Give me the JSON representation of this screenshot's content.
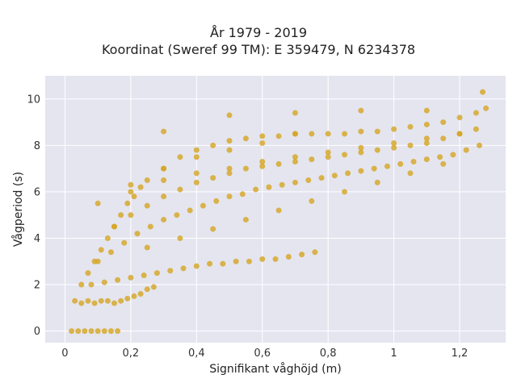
{
  "chart_data": {
    "type": "scatter",
    "title_line1": "År 1979 - 2019",
    "title_line2": "Koordinat (Sweref 99 TM): E 359479, N 6234378",
    "xlabel": "Signifikant våghöjd (m)",
    "ylabel": "Vågperiod (s)",
    "xlim": [
      -0.06,
      1.34
    ],
    "ylim": [
      -0.5,
      11.0
    ],
    "x_ticks": [
      {
        "value": 0,
        "label": "0"
      },
      {
        "value": 0.2,
        "label": "0,2"
      },
      {
        "value": 0.4,
        "label": "0,4"
      },
      {
        "value": 0.6,
        "label": "0,6"
      },
      {
        "value": 0.8,
        "label": "0,8"
      },
      {
        "value": 1.0,
        "label": "1"
      },
      {
        "value": 1.2,
        "label": "1,2"
      }
    ],
    "y_ticks": [
      {
        "value": 0,
        "label": "0"
      },
      {
        "value": 2,
        "label": "2"
      },
      {
        "value": 4,
        "label": "4"
      },
      {
        "value": 6,
        "label": "6"
      },
      {
        "value": 8,
        "label": "8"
      },
      {
        "value": 10,
        "label": "10"
      }
    ],
    "grid": true,
    "legend": "none",
    "marker_color": "#D4A520",
    "background_color": "#E5E5F0",
    "series": [
      {
        "x": [
          0.02,
          0.04,
          0.06,
          0.08,
          0.1,
          0.12,
          0.14,
          0.16,
          0.03,
          0.05,
          0.07,
          0.09,
          0.11,
          0.13,
          0.15,
          0.17,
          0.19,
          0.21,
          0.23,
          0.25,
          0.27,
          0.08,
          0.12,
          0.16,
          0.2,
          0.24,
          0.28,
          0.32,
          0.36,
          0.4,
          0.44,
          0.48,
          0.52,
          0.56,
          0.6,
          0.64,
          0.68,
          0.72,
          0.76,
          0.1,
          0.14,
          0.18,
          0.22,
          0.26,
          0.3,
          0.34,
          0.38,
          0.42,
          0.46,
          0.5,
          0.54,
          0.58,
          0.62,
          0.66,
          0.7,
          0.74,
          0.78,
          0.82,
          0.86,
          0.9,
          0.94,
          0.98,
          1.02,
          1.06,
          1.1,
          1.14,
          1.18,
          1.22,
          1.26,
          0.15,
          0.2,
          0.25,
          0.3,
          0.35,
          0.4,
          0.45,
          0.5,
          0.55,
          0.6,
          0.65,
          0.7,
          0.75,
          0.8,
          0.85,
          0.9,
          0.95,
          1.0,
          1.05,
          1.1,
          1.15,
          1.2,
          1.25,
          0.05,
          0.07,
          0.09,
          0.11,
          0.13,
          0.15,
          0.17,
          0.19,
          0.21,
          0.23,
          0.25,
          0.3,
          0.35,
          0.4,
          0.45,
          0.5,
          0.55,
          0.6,
          0.65,
          0.7,
          0.75,
          0.8,
          0.85,
          0.9,
          0.95,
          1.0,
          1.05,
          1.1,
          1.15,
          1.2,
          1.25,
          1.28,
          0.2,
          0.3,
          0.4,
          0.5,
          0.6,
          0.7,
          0.8,
          0.9,
          1.0,
          1.1,
          1.2,
          0.25,
          0.35,
          0.45,
          0.55,
          0.65,
          0.75,
          0.85,
          0.95,
          1.05,
          1.15,
          0.3,
          0.5,
          0.7,
          0.9,
          1.1,
          1.27,
          0.1,
          0.2,
          0.3,
          0.4,
          0.5,
          0.6,
          0.7
        ],
        "y": [
          0,
          0,
          0,
          0,
          0,
          0,
          0,
          0,
          1.3,
          1.2,
          1.3,
          1.2,
          1.3,
          1.3,
          1.2,
          1.3,
          1.4,
          1.5,
          1.6,
          1.8,
          1.9,
          2.0,
          2.1,
          2.2,
          2.3,
          2.4,
          2.5,
          2.6,
          2.7,
          2.8,
          2.9,
          2.9,
          3.0,
          3.0,
          3.1,
          3.1,
          3.2,
          3.3,
          3.4,
          3.0,
          3.4,
          3.8,
          4.2,
          4.5,
          4.8,
          5.0,
          5.2,
          5.4,
          5.6,
          5.8,
          5.9,
          6.1,
          6.2,
          6.3,
          6.4,
          6.5,
          6.6,
          6.7,
          6.8,
          6.9,
          7.0,
          7.1,
          7.2,
          7.3,
          7.4,
          7.5,
          7.6,
          7.8,
          8.0,
          4.5,
          5.0,
          5.4,
          5.8,
          6.1,
          6.4,
          6.6,
          6.8,
          7.0,
          7.1,
          7.2,
          7.3,
          7.4,
          7.5,
          7.6,
          7.7,
          7.8,
          7.9,
          8.0,
          8.1,
          8.3,
          8.5,
          8.7,
          2.0,
          2.5,
          3.0,
          3.5,
          4.0,
          4.5,
          5.0,
          5.5,
          5.8,
          6.2,
          6.5,
          7.0,
          7.5,
          7.8,
          8.0,
          8.2,
          8.3,
          8.4,
          8.4,
          8.5,
          8.5,
          8.5,
          8.5,
          8.6,
          8.6,
          8.7,
          8.8,
          8.9,
          9.0,
          9.2,
          9.4,
          9.6,
          6.0,
          6.5,
          6.8,
          7.0,
          7.3,
          7.5,
          7.7,
          7.9,
          8.1,
          8.3,
          8.5,
          3.6,
          4.0,
          4.4,
          4.8,
          5.2,
          5.6,
          6.0,
          6.4,
          6.8,
          7.2,
          8.6,
          9.3,
          9.4,
          9.5,
          9.5,
          10.3,
          5.5,
          6.3,
          7.0,
          7.5,
          7.8,
          8.1,
          8.5
        ]
      }
    ]
  }
}
